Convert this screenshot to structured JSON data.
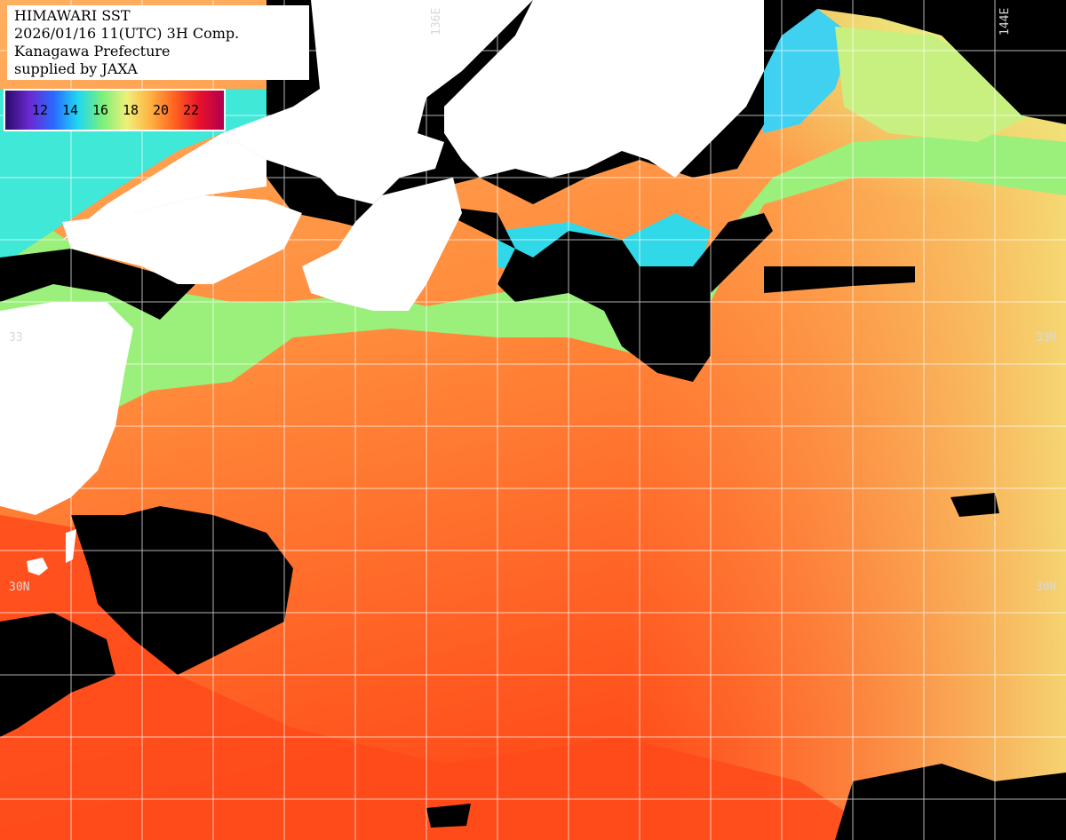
{
  "title_block": {
    "line1": "HIMAWARI SST",
    "line2": "2026/01/16 11(UTC) 3H Comp.",
    "line3": "Kanagawa Prefecture",
    "line4": "supplied by JAXA"
  },
  "legend": {
    "ticks": [
      "12",
      "14",
      "16",
      "18",
      "20",
      "22"
    ],
    "colors": [
      "#2a0a6a",
      "#6a2ad0",
      "#2a6aff",
      "#20d8f0",
      "#7af07a",
      "#f0f07a",
      "#ffb040",
      "#ff6020",
      "#e8102a",
      "#b00050"
    ]
  },
  "grid_labels": {
    "lon_136": "136E",
    "lon_144": "144E",
    "lat_33_left": "33",
    "lat_33_right": "33N",
    "lat_30_left": "30N",
    "lat_30_right": "30N"
  },
  "colors": {
    "land": "#ffffff",
    "no_data": "#000000",
    "warm_sea": "#ff8a3a",
    "hot_sea": "#ff4a1a",
    "cool_sea": "#f0e870",
    "coastal": "#30e8e0",
    "grid": "#ffffff"
  }
}
